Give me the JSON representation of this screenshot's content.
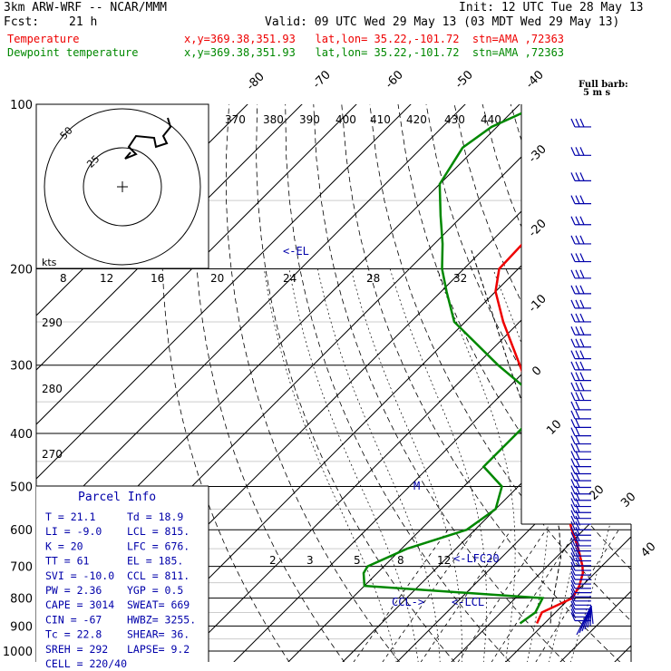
{
  "header": {
    "model": "3km ARW-WRF -- NCAR/MMM",
    "init": "Init: 12 UTC Tue 28 May 13",
    "fcst_label": "Fcst:",
    "fcst_value": "21 h",
    "valid": "Valid: 09 UTC Wed 29 May 13 (03 MDT Wed 29 May 13)",
    "temp_label": "Temperature",
    "temp_loc": "x,y=369.38,351.93   lat,lon= 35.22,-101.72  stn=AMA ,72363",
    "dew_label": "Dewpoint temperature",
    "dew_loc": "x,y=369.38,351.93   lat,lon= 35.22,-101.72  stn=AMA ,72363"
  },
  "colors": {
    "temperature": "#ee0000",
    "dewpoint": "#008800",
    "parcel_info": "#0000aa"
  },
  "chart_data": {
    "type": "skew-t",
    "pressure_levels": [
      100,
      200,
      300,
      400,
      500,
      600,
      700,
      800,
      900,
      1000
    ],
    "temperature_ticks": [
      -80,
      -70,
      -60,
      -50,
      -40,
      -30,
      -20,
      -10,
      0,
      10,
      20,
      30,
      40
    ],
    "theta_labels": [
      370,
      380,
      390,
      400,
      410,
      420,
      430,
      440,
      290,
      280,
      270
    ],
    "mixing_ratio_labels": [
      "2",
      "3",
      "5",
      "8",
      "12"
    ],
    "hodograph_speed_labels": [
      "25",
      "50",
      "kts"
    ],
    "hodograph_axis_labels": [
      "8",
      "12",
      "16",
      "20",
      "24",
      "28",
      "32"
    ],
    "wind_legend": [
      "Full barb:",
      "5 m s"
    ],
    "temperature_profile": [
      {
        "p": 890,
        "t": 18.6
      },
      {
        "p": 850,
        "t": 17.5
      },
      {
        "p": 800,
        "t": 20.5
      },
      {
        "p": 760,
        "t": 19.5
      },
      {
        "p": 720,
        "t": 17.8
      },
      {
        "p": 700,
        "t": 16.5
      },
      {
        "p": 650,
        "t": 12.5
      },
      {
        "p": 600,
        "t": 7.8
      },
      {
        "p": 550,
        "t": 3.0
      },
      {
        "p": 500,
        "t": -2.8
      },
      {
        "p": 450,
        "t": -8.5
      },
      {
        "p": 400,
        "t": -15.0
      },
      {
        "p": 350,
        "t": -22.8
      },
      {
        "p": 300,
        "t": -32.0
      },
      {
        "p": 250,
        "t": -43.0
      },
      {
        "p": 220,
        "t": -50.0
      },
      {
        "p": 200,
        "t": -53.5
      },
      {
        "p": 180,
        "t": -53.8
      },
      {
        "p": 160,
        "t": -54.0
      },
      {
        "p": 140,
        "t": -55.5
      },
      {
        "p": 120,
        "t": -59.0
      },
      {
        "p": 100,
        "t": -64.5
      }
    ],
    "dewpoint_profile": [
      {
        "p": 890,
        "t": 15.5
      },
      {
        "p": 850,
        "t": 16.3
      },
      {
        "p": 800,
        "t": 15.0
      },
      {
        "p": 760,
        "t": -20.0
      },
      {
        "p": 720,
        "t": -22.5
      },
      {
        "p": 700,
        "t": -23.0
      },
      {
        "p": 650,
        "t": -19.0
      },
      {
        "p": 600,
        "t": -11.5
      },
      {
        "p": 550,
        "t": -10.0
      },
      {
        "p": 500,
        "t": -13.0
      },
      {
        "p": 460,
        "t": -20.0
      },
      {
        "p": 400,
        "t": -20.0
      },
      {
        "p": 370,
        "t": -20.0
      },
      {
        "p": 340,
        "t": -24.0
      },
      {
        "p": 300,
        "t": -36.0
      },
      {
        "p": 250,
        "t": -52.0
      },
      {
        "p": 220,
        "t": -59.0
      },
      {
        "p": 200,
        "t": -64.0
      },
      {
        "p": 180,
        "t": -68.5
      },
      {
        "p": 160,
        "t": -74.0
      },
      {
        "p": 140,
        "t": -80.0
      },
      {
        "p": 120,
        "t": -82.5
      },
      {
        "p": 110,
        "t": -81.0
      },
      {
        "p": 100,
        "t": -76.0
      }
    ],
    "parcel_path": [
      {
        "p": 890,
        "t": 21.1
      },
      {
        "p": 815,
        "t": 17.5
      },
      {
        "p": 800,
        "t": 17.0
      },
      {
        "p": 700,
        "t": 12.2
      },
      {
        "p": 676,
        "t": 11.0
      },
      {
        "p": 600,
        "t": 5.5
      },
      {
        "p": 500,
        "t": -4.0
      },
      {
        "p": 400,
        "t": -17.0
      },
      {
        "p": 300,
        "t": -34.0
      },
      {
        "p": 250,
        "t": -44.5
      },
      {
        "p": 185,
        "t": -62.0
      }
    ],
    "annotations": {
      "el": "<-EL",
      "lfc": "<-LFC20",
      "lcl": "<-LCL",
      "ccl": "CCL->",
      "marker": "M"
    }
  },
  "parcel_info": {
    "title": "Parcel Info",
    "rows": [
      [
        "T  =    21.1",
        "Td =  18.9"
      ],
      [
        "LI =    -9.0",
        "LCL =  815."
      ],
      [
        "K  =     20",
        "LFC =  676."
      ],
      [
        "TT =     61",
        "EL  =  185."
      ],
      [
        "SVI = -10.0",
        "CCL =  811."
      ],
      [
        "PW =   2.36",
        "YGP =   0.5"
      ],
      [
        "CAPE =  3014",
        "SWEAT=  669"
      ],
      [
        "CIN  =   -67",
        "HWBZ= 3255."
      ],
      [
        "Tc =   22.8",
        "SHEAR=  36."
      ],
      [
        "SREH =   292",
        "LAPSE=  9.2"
      ],
      [
        "CELL = 220/40",
        ""
      ]
    ]
  }
}
